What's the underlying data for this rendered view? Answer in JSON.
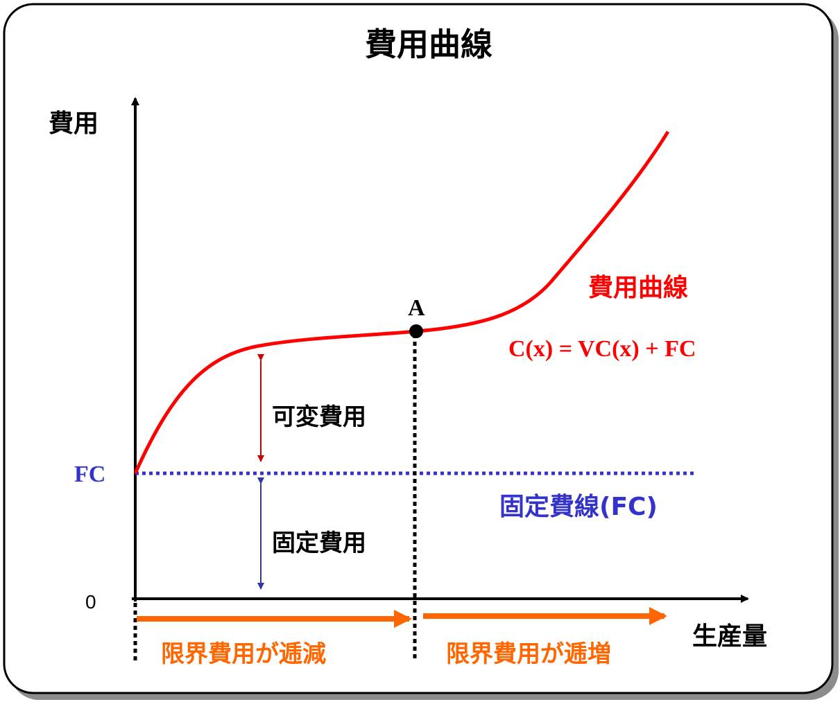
{
  "title": "費用曲線",
  "y_axis_label": "費用",
  "x_axis_label": "生産量",
  "origin_label": "0",
  "fc_label": "FC",
  "point_label": "A",
  "curve_name": "費用曲線",
  "formula": "C(x) = VC(x) + FC",
  "fixed_line_label": "固定費線(FC)",
  "variable_cost_label": "可変費用",
  "fixed_cost_label": "固定費用",
  "region_left_label": "限界費用が逓減",
  "region_right_label": "限界費用が逓増",
  "colors": {
    "curve": "#ff0000",
    "fixed_line": "#3333cc",
    "variable_arrow": "#cc0000",
    "fixed_arrow": "#3333aa",
    "region_arrows": "#ff6600",
    "axes": "#000000",
    "frame": "#000000",
    "shadow": "#8c8c8c"
  }
}
